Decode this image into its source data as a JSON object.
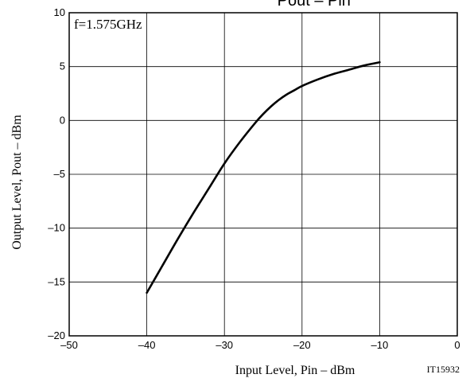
{
  "chart_data": {
    "type": "line",
    "title": "Pout  –  Pin",
    "annotation": "f=1.575GHz",
    "xlabel": "Input Level, Pin  –  dBm",
    "ylabel": "Output Level, Pout  –  dBm",
    "figure_code": "IT15932",
    "xlim": [
      -50,
      0
    ],
    "ylim": [
      -20,
      10
    ],
    "x_ticks": [
      -50,
      -40,
      -30,
      -20,
      -10,
      0
    ],
    "y_ticks": [
      -20,
      -15,
      -10,
      -5,
      0,
      5,
      10
    ],
    "x_tick_labels": [
      "–50",
      "–40",
      "–30",
      "–20",
      "–10",
      "0"
    ],
    "y_tick_labels": [
      "–20",
      "–15",
      "–10",
      "–5",
      "0",
      "5",
      "10"
    ],
    "grid": true,
    "series": [
      {
        "x": [
          -40,
          -38,
          -36,
          -34,
          -32,
          -30,
          -28,
          -26,
          -25,
          -24,
          -23,
          -22,
          -21,
          -20,
          -18,
          -16,
          -14,
          -12,
          -10
        ],
        "y": [
          -16,
          -13.5,
          -11,
          -8.6,
          -6.3,
          -4.0,
          -2.0,
          -0.2,
          0.6,
          1.3,
          1.9,
          2.4,
          2.8,
          3.2,
          3.8,
          4.3,
          4.7,
          5.1,
          5.4
        ]
      }
    ],
    "colors": {
      "line": "#000000",
      "grid": "#000000"
    }
  }
}
